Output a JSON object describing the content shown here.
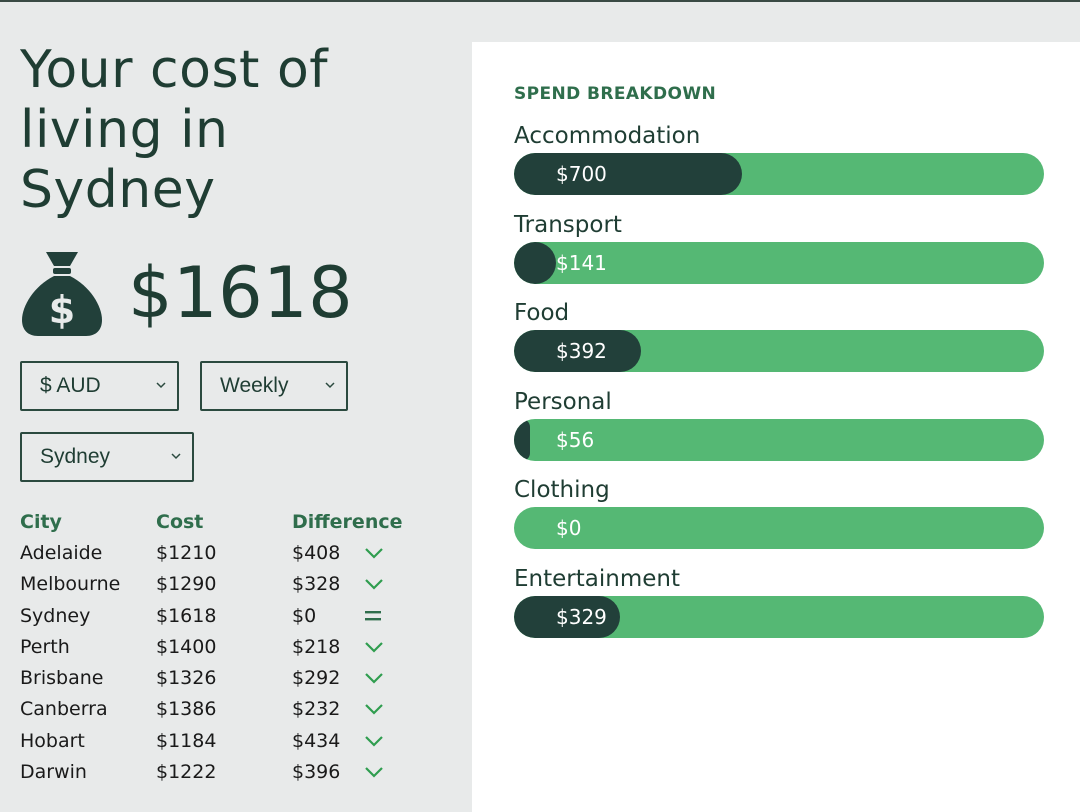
{
  "title": "Your cost of living in Sydney",
  "title_lines": [
    "Your cost of",
    "living in",
    "Sydney"
  ],
  "total": "$1618",
  "selects": {
    "currency": "$ AUD",
    "period": "Weekly",
    "city": "Sydney"
  },
  "comparison": {
    "headers": [
      "City",
      "Cost",
      "Difference"
    ],
    "rows": [
      {
        "city": "Adelaide",
        "cost": "$1210",
        "difference": "$408",
        "indicator": "chevron-down"
      },
      {
        "city": "Melbourne",
        "cost": "$1290",
        "difference": "$328",
        "indicator": "chevron-down"
      },
      {
        "city": "Sydney",
        "cost": "$1618",
        "difference": "$0",
        "indicator": "equals"
      },
      {
        "city": "Perth",
        "cost": "$1400",
        "difference": "$218",
        "indicator": "chevron-down"
      },
      {
        "city": "Brisbane",
        "cost": "$1326",
        "difference": "$292",
        "indicator": "chevron-down"
      },
      {
        "city": "Canberra",
        "cost": "$1386",
        "difference": "$232",
        "indicator": "chevron-down"
      },
      {
        "city": "Hobart",
        "cost": "$1184",
        "difference": "$434",
        "indicator": "chevron-down"
      },
      {
        "city": "Darwin",
        "cost": "$1222",
        "difference": "$396",
        "indicator": "chevron-down"
      }
    ]
  },
  "breakdown": {
    "title": "SPEND BREAKDOWN",
    "items": [
      {
        "label": "Accommodation",
        "value": "$700",
        "fraction": 0.43
      },
      {
        "label": "Transport",
        "value": "$141",
        "fraction": 0.08
      },
      {
        "label": "Food",
        "value": "$392",
        "fraction": 0.24
      },
      {
        "label": "Personal",
        "value": "$56",
        "fraction": 0.03
      },
      {
        "label": "Clothing",
        "value": "$0",
        "fraction": 0
      },
      {
        "label": "Entertainment",
        "value": "$329",
        "fraction": 0.2
      }
    ]
  },
  "colors": {
    "dark_green": "#22403a",
    "bar_green": "#55b874",
    "accent_green": "#2f6e4c"
  }
}
